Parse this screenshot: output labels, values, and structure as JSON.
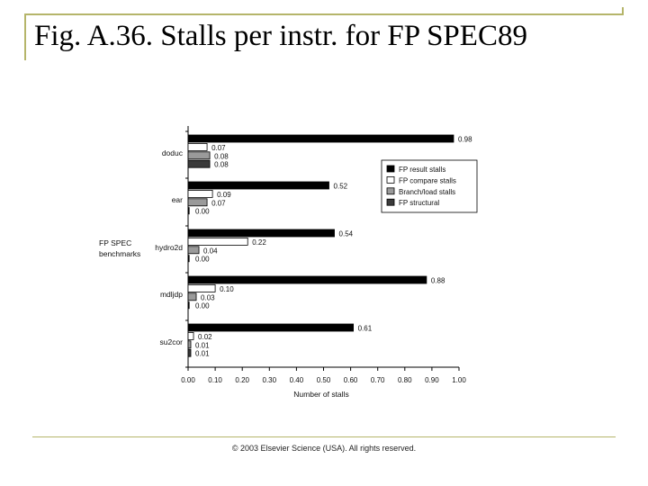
{
  "title": "Fig. A.36. Stalls per instr. for FP SPEC89",
  "footer": "© 2003 Elsevier Science (USA). All rights reserved.",
  "chart_data": {
    "type": "bar",
    "orientation": "horizontal",
    "title": "",
    "xlabel": "Number of stalls",
    "ylabel": "FP SPEC benchmarks",
    "xlim": [
      0,
      1.0
    ],
    "x_ticks": [
      "0.00",
      "0.10",
      "0.20",
      "0.30",
      "0.40",
      "0.50",
      "0.60",
      "0.70",
      "0.80",
      "0.90",
      "1.00"
    ],
    "categories": [
      "doduc",
      "ear",
      "hydro2d",
      "mdljdp",
      "su2cor"
    ],
    "series": [
      {
        "name": "FP result stalls",
        "color": "#000000",
        "values": [
          0.98,
          0.52,
          0.54,
          0.88,
          0.61
        ],
        "labels": [
          "0.98",
          "0.52",
          "0.54",
          "0.88",
          "0.61"
        ]
      },
      {
        "name": "FP compare stalls",
        "color": "#ffffff",
        "values": [
          0.07,
          0.09,
          0.22,
          0.1,
          0.02
        ],
        "labels": [
          "0.07",
          "0.09",
          "0.22",
          "0.10",
          "0.02"
        ]
      },
      {
        "name": "Branch/load stalls",
        "color": "#9a9a9a",
        "values": [
          0.08,
          0.07,
          0.04,
          0.03,
          0.01
        ],
        "labels": [
          "0.08",
          "0.07",
          "0.04",
          "0.03",
          "0.01"
        ]
      },
      {
        "name": "FP structural",
        "color": "#3a3a3a",
        "values": [
          0.08,
          0.0,
          0.0,
          0.0,
          0.01
        ],
        "labels": [
          "0.08",
          "0.00",
          "0.00",
          "0.00",
          "0.01"
        ]
      }
    ],
    "legend_position": "upper-right",
    "grid": false
  }
}
